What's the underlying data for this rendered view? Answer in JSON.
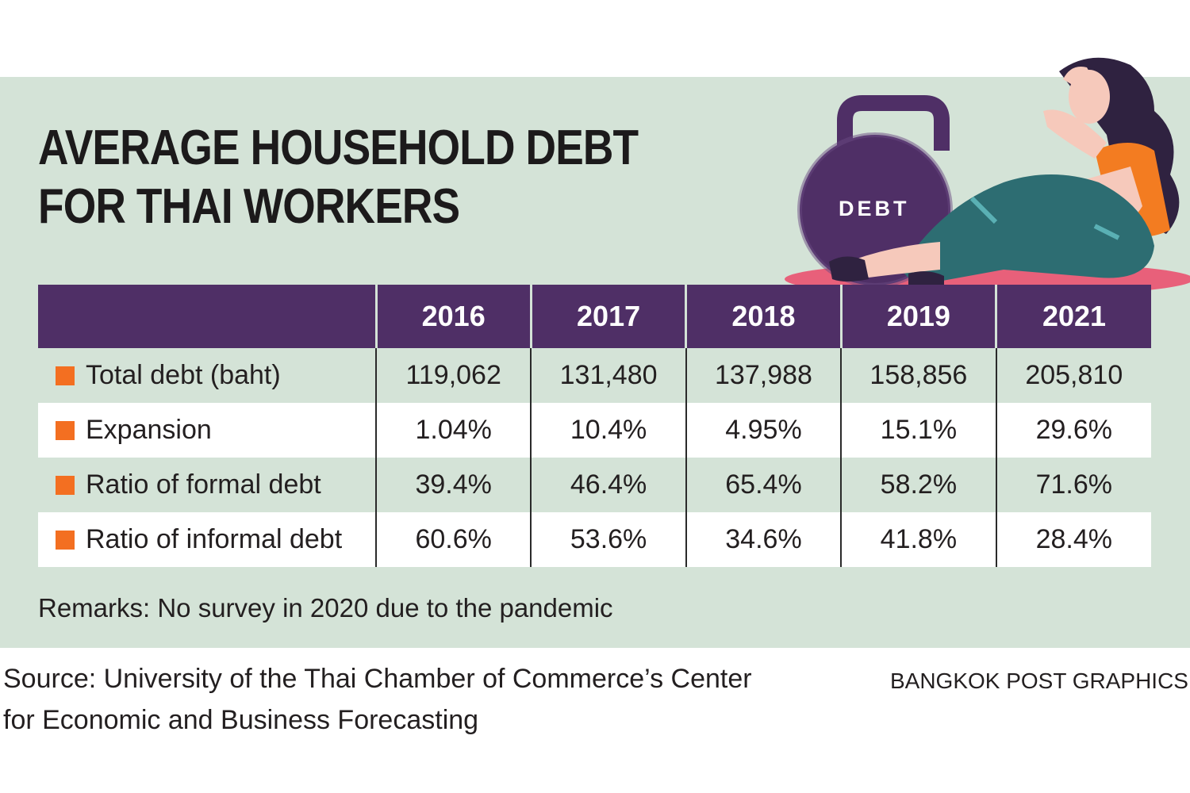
{
  "title_line1": "AVERAGE HOUSEHOLD DEBT",
  "title_line2": "FOR THAI WORKERS",
  "illustration_label": "DEBT",
  "chart_data": {
    "type": "table",
    "columns": [
      "2016",
      "2017",
      "2018",
      "2019",
      "2021"
    ],
    "rows": [
      {
        "label": "Total debt (baht)",
        "values": [
          "119,062",
          "131,480",
          "137,988",
          "158,856",
          "205,810"
        ]
      },
      {
        "label": "Expansion",
        "values": [
          "1.04%",
          "10.4%",
          "4.95%",
          "15.1%",
          "29.6%"
        ]
      },
      {
        "label": "Ratio of formal debt",
        "values": [
          "39.4%",
          "46.4%",
          "65.4%",
          "58.2%",
          "71.6%"
        ]
      },
      {
        "label": "Ratio of informal debt",
        "values": [
          "60.6%",
          "53.6%",
          "34.6%",
          "41.8%",
          "28.4%"
        ]
      }
    ]
  },
  "remarks": "Remarks: No survey in 2020 due to the pandemic",
  "source_line1": "Source: University of the Thai Chamber of Commerce’s Center",
  "source_line2": "for Economic and Business Forecasting",
  "credit": "BANGKOK POST GRAPHICS",
  "colors": {
    "panel_bg": "#d4e3d7",
    "header_bg": "#4f2f66",
    "bullet": "#f36f21",
    "kettlebell": "#4f2f66",
    "mat": "#e8607a"
  }
}
